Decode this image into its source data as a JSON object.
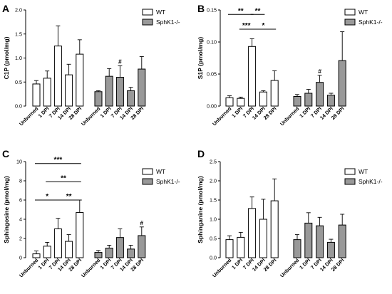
{
  "chart_data": [
    {
      "panel": "A",
      "type": "bar",
      "ylabel": "C1P (pmol/mg)",
      "ylim": [
        0,
        2.0
      ],
      "yticks": [
        0.0,
        0.5,
        1.0,
        1.5,
        2.0
      ],
      "ytick_labels": [
        "0.0",
        "0.5",
        "1.0",
        "1.5",
        "2.0"
      ],
      "categories": [
        "Unburned",
        "1 DPI",
        "7 DPI",
        "14 DPI",
        "28 DPI"
      ],
      "legend_position": "top-right",
      "series": [
        {
          "name": "WT",
          "color": "#ffffff",
          "values": [
            0.46,
            0.58,
            1.25,
            0.65,
            1.08
          ],
          "errors": [
            0.07,
            0.15,
            0.42,
            0.22,
            0.3
          ]
        },
        {
          "name": "SphK1-/-",
          "color": "#999999",
          "values": [
            0.3,
            0.62,
            0.6,
            0.32,
            0.77
          ],
          "errors": [
            0.02,
            0.16,
            0.24,
            0.07,
            0.26
          ]
        }
      ],
      "significance": [],
      "annotations": [
        {
          "series": 1,
          "index": 2,
          "text": "#"
        }
      ]
    },
    {
      "panel": "B",
      "type": "bar",
      "ylabel": "S1P (pmol/mg)",
      "ylim": [
        0,
        0.15
      ],
      "yticks": [
        0.0,
        0.05,
        0.1,
        0.15
      ],
      "ytick_labels": [
        "0.00",
        "0.05",
        "0.10",
        "0.15"
      ],
      "categories": [
        "Unburned",
        "1 DPI",
        "7 DPI",
        "14 DPI",
        "28 DPI"
      ],
      "legend_position": "top-right",
      "series": [
        {
          "name": "WT",
          "color": "#ffffff",
          "values": [
            0.013,
            0.012,
            0.093,
            0.022,
            0.04
          ],
          "errors": [
            0.003,
            0.002,
            0.012,
            0.002,
            0.015
          ]
        },
        {
          "name": "SphK1-/-",
          "color": "#999999",
          "values": [
            0.015,
            0.02,
            0.037,
            0.017,
            0.071
          ],
          "errors": [
            0.003,
            0.006,
            0.011,
            0.003,
            0.045
          ]
        }
      ],
      "significance": [
        {
          "from": 0,
          "to": 2,
          "y": 0.143,
          "text": "**"
        },
        {
          "from": 2,
          "to": 3,
          "y": 0.143,
          "text": "**"
        },
        {
          "from": 1,
          "to": 2,
          "y": 0.12,
          "text": "***"
        },
        {
          "from": 2,
          "to": 4,
          "y": 0.12,
          "text": "*"
        }
      ],
      "annotations": [
        {
          "series": 1,
          "index": 2,
          "text": "#"
        }
      ]
    },
    {
      "panel": "C",
      "type": "bar",
      "ylabel": "Sphingosine (pmol/mg)",
      "ylim": [
        0,
        10
      ],
      "yticks": [
        0,
        2,
        4,
        6,
        8,
        10
      ],
      "ytick_labels": [
        "0",
        "2",
        "4",
        "6",
        "8",
        "10"
      ],
      "categories": [
        "Unburned",
        "1 DPI",
        "7 DPI",
        "14 DPI",
        "28 DPI"
      ],
      "legend_position": "top-right",
      "series": [
        {
          "name": "WT",
          "color": "#ffffff",
          "values": [
            0.4,
            1.2,
            3.0,
            1.7,
            4.7
          ],
          "errors": [
            0.3,
            0.4,
            1.1,
            0.7,
            1.3
          ]
        },
        {
          "name": "SphK1-/-",
          "color": "#999999",
          "values": [
            0.55,
            1.0,
            2.1,
            0.9,
            2.3
          ],
          "errors": [
            0.2,
            0.3,
            0.9,
            0.4,
            0.9
          ]
        }
      ],
      "significance": [
        {
          "from": 0,
          "to": 4,
          "y": 9.8,
          "text": "***"
        },
        {
          "from": 1,
          "to": 4,
          "y": 7.9,
          "text": "**"
        },
        {
          "from": 0,
          "to": 2,
          "y": 6.0,
          "text": "*"
        },
        {
          "from": 2,
          "to": 4,
          "y": 6.0,
          "text": "**"
        }
      ],
      "annotations": [
        {
          "series": 1,
          "index": 4,
          "text": "#"
        }
      ]
    },
    {
      "panel": "D",
      "type": "bar",
      "ylabel": "Sphinganine (pmol/mg)",
      "ylim": [
        0,
        2.5
      ],
      "yticks": [
        0.0,
        0.5,
        1.0,
        1.5,
        2.0,
        2.5
      ],
      "ytick_labels": [
        "0.0",
        "0.5",
        "1.0",
        "1.5",
        "2.0",
        "2.5"
      ],
      "categories": [
        "Unburned",
        "1 DPI",
        "7 DPI",
        "14 DPI",
        "28 DPI"
      ],
      "legend_position": "top-right",
      "series": [
        {
          "name": "WT",
          "color": "#ffffff",
          "values": [
            0.47,
            0.53,
            1.28,
            1.0,
            1.48
          ],
          "errors": [
            0.1,
            0.13,
            0.3,
            0.52,
            0.57
          ]
        },
        {
          "name": "SphK1-/-",
          "color": "#999999",
          "values": [
            0.47,
            0.9,
            0.83,
            0.4,
            0.85
          ],
          "errors": [
            0.13,
            0.27,
            0.22,
            0.08,
            0.28
          ]
        }
      ],
      "significance": [],
      "annotations": []
    }
  ]
}
